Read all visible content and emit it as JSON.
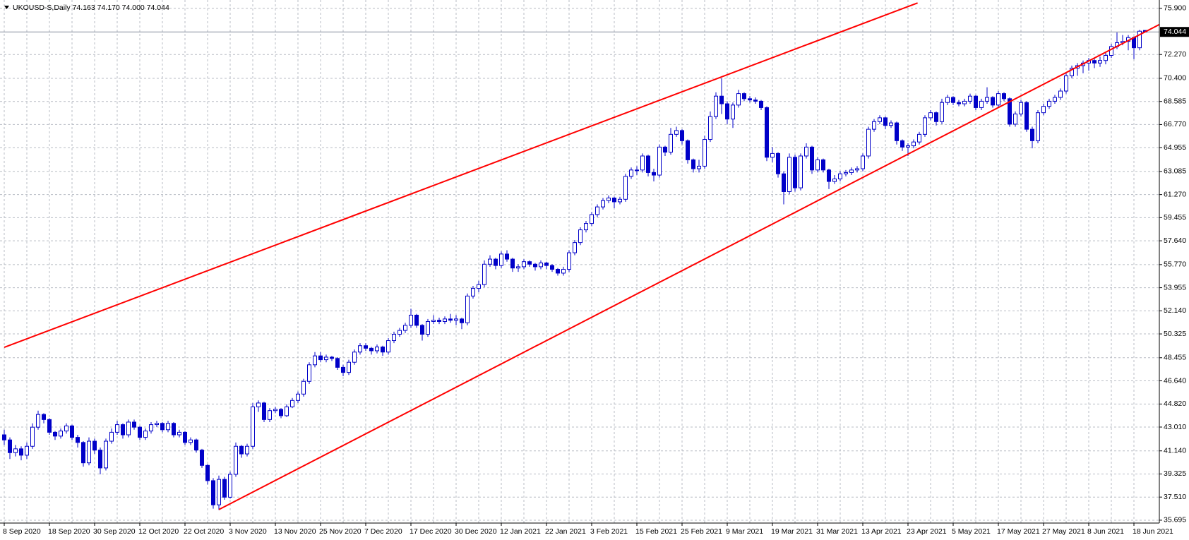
{
  "chart_data": {
    "type": "candlestick",
    "title": "UKOUSD-S,Daily  74.163 74.170 74.000 74.044",
    "color": "#0000c8",
    "grid": true,
    "ylim": [
      35.47,
      76.33
    ],
    "yticks": [
      {
        "value": 75.9,
        "label": "75.900"
      },
      {
        "value": 72.27,
        "label": "72.270"
      },
      {
        "value": 70.4,
        "label": "70.400"
      },
      {
        "value": 68.585,
        "label": "68.585"
      },
      {
        "value": 66.77,
        "label": "66.770"
      },
      {
        "value": 64.955,
        "label": "64.955"
      },
      {
        "value": 63.085,
        "label": "63.085"
      },
      {
        "value": 61.27,
        "label": "61.270"
      },
      {
        "value": 59.455,
        "label": "59.455"
      },
      {
        "value": 57.64,
        "label": "57.640"
      },
      {
        "value": 55.77,
        "label": "55.770"
      },
      {
        "value": 53.955,
        "label": "53.955"
      },
      {
        "value": 52.14,
        "label": "52.140"
      },
      {
        "value": 50.325,
        "label": "50.325"
      },
      {
        "value": 48.455,
        "label": "48.455"
      },
      {
        "value": 46.64,
        "label": "46.640"
      },
      {
        "value": 44.82,
        "label": "44.820"
      },
      {
        "value": 43.01,
        "label": "43.010"
      },
      {
        "value": 41.14,
        "label": "41.140"
      },
      {
        "value": 39.325,
        "label": "39.325"
      },
      {
        "value": 37.51,
        "label": "37.510"
      },
      {
        "value": 35.695,
        "label": "35.695"
      }
    ],
    "current_price": {
      "value": 74.044,
      "label": "74.044"
    },
    "trendlines": [
      {
        "color": "#ff0000",
        "x": [
          0,
          161.7
        ],
        "y": [
          49.27,
          76.32
        ]
      },
      {
        "color": "#ff0000",
        "x": [
          38,
          204.6
        ],
        "y": [
          36.53,
          74.65
        ]
      }
    ],
    "categories": [
      "8 Sep 2020",
      null,
      null,
      null,
      null,
      null,
      null,
      null,
      "18 Sep 2020",
      null,
      null,
      null,
      null,
      null,
      null,
      null,
      "30 Sep 2020",
      null,
      null,
      null,
      null,
      null,
      null,
      null,
      "12 Oct 2020",
      null,
      null,
      null,
      null,
      null,
      null,
      null,
      "22 Oct 2020",
      null,
      null,
      null,
      null,
      null,
      null,
      null,
      "3 Nov 2020",
      null,
      null,
      null,
      null,
      null,
      null,
      null,
      "13 Nov 2020",
      null,
      null,
      null,
      null,
      null,
      null,
      null,
      "25 Nov 2020",
      null,
      null,
      null,
      null,
      null,
      null,
      null,
      "7 Dec 2020",
      null,
      null,
      null,
      null,
      null,
      null,
      null,
      "17 Dec 2020",
      null,
      null,
      null,
      null,
      null,
      null,
      null,
      "30 Dec 2020",
      null,
      null,
      null,
      null,
      null,
      null,
      null,
      "12 Jan 2021",
      null,
      null,
      null,
      null,
      null,
      null,
      null,
      "22 Jan 2021",
      null,
      null,
      null,
      null,
      null,
      null,
      null,
      "3 Feb 2021",
      null,
      null,
      null,
      null,
      null,
      null,
      null,
      "15 Feb 2021",
      null,
      null,
      null,
      null,
      null,
      null,
      null,
      "25 Feb 2021",
      null,
      null,
      null,
      null,
      null,
      null,
      null,
      "9 Mar 2021",
      null,
      null,
      null,
      null,
      null,
      null,
      null,
      "19 Mar 2021",
      null,
      null,
      null,
      null,
      null,
      null,
      null,
      "31 Mar 2021",
      null,
      null,
      null,
      null,
      null,
      null,
      null,
      "13 Apr 2021",
      null,
      null,
      null,
      null,
      null,
      null,
      null,
      "23 Apr 2021",
      null,
      null,
      null,
      null,
      null,
      null,
      null,
      "5 May 2021",
      null,
      null,
      null,
      null,
      null,
      null,
      null,
      "17 May 2021",
      null,
      null,
      null,
      null,
      null,
      null,
      null,
      "27 May 2021",
      null,
      null,
      null,
      null,
      null,
      null,
      null,
      "8 Jun 2021",
      null,
      null,
      null,
      null,
      null,
      null,
      null,
      "18 Jun 2021",
      null,
      null
    ],
    "ohlc": [
      [
        42.4,
        42.8,
        41.6,
        42.0
      ],
      [
        42.0,
        42.2,
        40.5,
        41.0
      ],
      [
        41.0,
        41.6,
        40.7,
        41.3
      ],
      [
        41.3,
        41.5,
        40.4,
        40.8
      ],
      [
        40.8,
        41.8,
        40.5,
        41.5
      ],
      [
        41.5,
        43.3,
        41.3,
        43.0
      ],
      [
        43.0,
        44.3,
        42.8,
        44.0
      ],
      [
        44.0,
        44.1,
        43.3,
        43.6
      ],
      [
        43.6,
        43.7,
        42.4,
        42.6
      ],
      [
        42.6,
        42.7,
        42.0,
        42.3
      ],
      [
        42.3,
        42.9,
        42.1,
        42.7
      ],
      [
        42.7,
        43.3,
        42.5,
        43.1
      ],
      [
        43.1,
        43.2,
        42.0,
        42.2
      ],
      [
        42.2,
        42.4,
        41.4,
        41.8
      ],
      [
        41.8,
        41.9,
        39.9,
        40.2
      ],
      [
        40.2,
        42.2,
        40.0,
        41.9
      ],
      [
        41.9,
        42.1,
        40.9,
        41.2
      ],
      [
        41.2,
        41.4,
        39.3,
        39.8
      ],
      [
        39.8,
        42.1,
        39.6,
        41.9
      ],
      [
        41.9,
        42.9,
        41.7,
        42.6
      ],
      [
        42.6,
        43.5,
        42.4,
        43.2
      ],
      [
        43.2,
        43.3,
        42.1,
        42.4
      ],
      [
        42.4,
        43.6,
        42.2,
        43.4
      ],
      [
        43.4,
        43.6,
        42.8,
        43.0
      ],
      [
        43.0,
        43.1,
        42.0,
        42.2
      ],
      [
        42.2,
        42.9,
        42.0,
        42.7
      ],
      [
        42.7,
        43.4,
        42.5,
        43.2
      ],
      [
        43.2,
        43.5,
        43.0,
        43.3
      ],
      [
        43.3,
        43.4,
        42.6,
        42.8
      ],
      [
        42.8,
        43.5,
        42.6,
        43.3
      ],
      [
        43.3,
        43.4,
        42.2,
        42.4
      ],
      [
        42.4,
        42.8,
        42.2,
        42.6
      ],
      [
        42.6,
        42.7,
        41.6,
        41.8
      ],
      [
        41.8,
        42.2,
        41.6,
        42.0
      ],
      [
        42.0,
        42.1,
        41.0,
        41.2
      ],
      [
        41.2,
        41.3,
        39.8,
        40.0
      ],
      [
        40.0,
        40.1,
        38.5,
        38.8
      ],
      [
        38.8,
        39.0,
        36.6,
        36.9
      ],
      [
        36.9,
        39.2,
        36.5,
        38.9
      ],
      [
        38.9,
        39.1,
        37.3,
        37.5
      ],
      [
        37.5,
        39.5,
        37.4,
        39.3
      ],
      [
        39.3,
        41.8,
        39.1,
        41.5
      ],
      [
        41.5,
        41.6,
        40.6,
        40.9
      ],
      [
        40.9,
        41.7,
        40.7,
        41.5
      ],
      [
        41.5,
        44.9,
        41.3,
        44.6
      ],
      [
        44.6,
        45.1,
        44.2,
        44.9
      ],
      [
        44.9,
        45.0,
        43.4,
        43.6
      ],
      [
        43.6,
        44.5,
        43.4,
        44.3
      ],
      [
        44.3,
        44.6,
        44.1,
        44.4
      ],
      [
        44.4,
        44.5,
        43.7,
        43.9
      ],
      [
        43.9,
        44.8,
        43.8,
        44.6
      ],
      [
        44.6,
        45.3,
        44.5,
        45.1
      ],
      [
        45.1,
        45.8,
        44.9,
        45.6
      ],
      [
        45.6,
        46.8,
        45.4,
        46.6
      ],
      [
        46.6,
        48.1,
        46.4,
        47.9
      ],
      [
        47.9,
        48.9,
        47.7,
        48.6
      ],
      [
        48.6,
        48.9,
        48.1,
        48.3
      ],
      [
        48.3,
        48.7,
        48.1,
        48.5
      ],
      [
        48.5,
        48.6,
        48.2,
        48.4
      ],
      [
        48.4,
        48.5,
        47.5,
        47.7
      ],
      [
        47.7,
        47.9,
        47.0,
        47.3
      ],
      [
        47.3,
        48.3,
        47.1,
        48.1
      ],
      [
        48.1,
        49.1,
        47.9,
        48.9
      ],
      [
        48.9,
        49.6,
        48.7,
        49.4
      ],
      [
        49.4,
        49.6,
        49.0,
        49.2
      ],
      [
        49.2,
        49.3,
        48.7,
        49.0
      ],
      [
        49.0,
        49.5,
        48.8,
        49.3
      ],
      [
        49.3,
        49.4,
        48.6,
        48.9
      ],
      [
        48.9,
        50.0,
        48.7,
        49.8
      ],
      [
        49.8,
        50.5,
        49.6,
        50.3
      ],
      [
        50.3,
        50.8,
        50.1,
        50.6
      ],
      [
        50.6,
        51.2,
        50.4,
        51.0
      ],
      [
        51.0,
        52.3,
        50.8,
        51.8
      ],
      [
        51.8,
        51.9,
        50.8,
        51.0
      ],
      [
        51.0,
        51.1,
        49.8,
        50.3
      ],
      [
        50.3,
        51.5,
        50.1,
        51.3
      ],
      [
        51.3,
        51.8,
        51.1,
        51.4
      ],
      [
        51.4,
        51.6,
        51.1,
        51.3
      ],
      [
        51.3,
        51.7,
        51.1,
        51.5
      ],
      [
        51.5,
        51.9,
        51.2,
        51.4
      ],
      [
        51.4,
        51.8,
        51.0,
        51.5
      ],
      [
        51.5,
        51.6,
        50.7,
        51.2
      ],
      [
        51.2,
        53.5,
        51.0,
        53.3
      ],
      [
        53.3,
        54.1,
        53.1,
        53.9
      ],
      [
        53.9,
        54.5,
        53.6,
        54.2
      ],
      [
        54.2,
        56.1,
        54.0,
        55.8
      ],
      [
        55.8,
        56.5,
        55.6,
        56.2
      ],
      [
        56.2,
        56.3,
        55.4,
        55.7
      ],
      [
        55.7,
        56.8,
        55.5,
        56.6
      ],
      [
        56.6,
        56.9,
        56.0,
        56.2
      ],
      [
        56.2,
        56.3,
        55.2,
        55.5
      ],
      [
        55.5,
        55.8,
        55.2,
        55.6
      ],
      [
        55.6,
        56.2,
        55.4,
        56.0
      ],
      [
        56.0,
        56.1,
        55.6,
        55.8
      ],
      [
        55.8,
        55.9,
        55.3,
        55.6
      ],
      [
        55.6,
        56.1,
        55.4,
        55.9
      ],
      [
        55.9,
        56.0,
        55.4,
        55.7
      ],
      [
        55.7,
        55.8,
        55.2,
        55.4
      ],
      [
        55.4,
        55.5,
        54.9,
        55.1
      ],
      [
        55.1,
        55.6,
        54.9,
        55.4
      ],
      [
        55.4,
        56.9,
        55.2,
        56.7
      ],
      [
        56.7,
        57.7,
        56.5,
        57.5
      ],
      [
        57.5,
        58.7,
        57.3,
        58.5
      ],
      [
        58.5,
        59.2,
        58.3,
        59.0
      ],
      [
        59.0,
        59.9,
        58.8,
        59.7
      ],
      [
        59.7,
        60.5,
        59.5,
        60.3
      ],
      [
        60.3,
        61.0,
        60.1,
        60.8
      ],
      [
        60.8,
        61.2,
        60.6,
        61.0
      ],
      [
        61.0,
        61.1,
        60.2,
        60.7
      ],
      [
        60.7,
        61.1,
        60.5,
        60.9
      ],
      [
        60.9,
        62.9,
        60.7,
        62.7
      ],
      [
        62.7,
        63.4,
        62.5,
        63.2
      ],
      [
        63.2,
        63.5,
        62.8,
        63.2
      ],
      [
        63.2,
        64.5,
        63.0,
        64.3
      ],
      [
        64.3,
        64.4,
        62.7,
        63.0
      ],
      [
        63.0,
        63.3,
        62.3,
        62.8
      ],
      [
        62.8,
        65.2,
        62.6,
        65.0
      ],
      [
        65.0,
        65.1,
        64.3,
        64.6
      ],
      [
        64.6,
        66.5,
        64.4,
        66.0
      ],
      [
        66.0,
        66.6,
        65.8,
        66.3
      ],
      [
        66.3,
        66.4,
        65.2,
        65.5
      ],
      [
        65.5,
        65.6,
        63.7,
        64.0
      ],
      [
        64.0,
        64.1,
        63.0,
        63.3
      ],
      [
        63.3,
        64.0,
        63.0,
        63.5
      ],
      [
        63.5,
        65.9,
        63.3,
        65.6
      ],
      [
        65.6,
        67.8,
        65.4,
        67.4
      ],
      [
        67.4,
        69.3,
        67.2,
        69.0
      ],
      [
        69.0,
        70.4,
        67.6,
        68.4
      ],
      [
        68.4,
        68.6,
        66.8,
        67.2
      ],
      [
        67.2,
        68.5,
        66.5,
        68.3
      ],
      [
        68.3,
        69.5,
        68.1,
        69.2
      ],
      [
        69.2,
        69.3,
        68.6,
        68.8
      ],
      [
        68.8,
        69.0,
        68.5,
        68.7
      ],
      [
        68.7,
        68.9,
        68.4,
        68.6
      ],
      [
        68.6,
        68.7,
        67.9,
        68.1
      ],
      [
        68.1,
        68.2,
        63.9,
        64.2
      ],
      [
        64.2,
        65.0,
        63.8,
        64.5
      ],
      [
        64.5,
        64.6,
        62.6,
        62.9
      ],
      [
        62.9,
        63.1,
        60.5,
        61.5
      ],
      [
        61.5,
        64.5,
        61.3,
        64.2
      ],
      [
        64.2,
        64.4,
        61.5,
        61.8
      ],
      [
        61.8,
        64.5,
        61.6,
        64.3
      ],
      [
        64.3,
        65.3,
        64.1,
        65.0
      ],
      [
        65.0,
        65.1,
        62.9,
        63.2
      ],
      [
        63.2,
        64.2,
        63.0,
        64.0
      ],
      [
        64.0,
        64.1,
        63.0,
        63.2
      ],
      [
        63.2,
        63.3,
        61.7,
        62.3
      ],
      [
        62.3,
        62.8,
        62.1,
        62.5
      ],
      [
        62.5,
        63.1,
        62.3,
        62.9
      ],
      [
        62.9,
        63.2,
        62.7,
        63.0
      ],
      [
        63.0,
        63.4,
        62.8,
        63.2
      ],
      [
        63.2,
        63.5,
        63.0,
        63.3
      ],
      [
        63.3,
        64.5,
        63.1,
        64.3
      ],
      [
        64.3,
        66.6,
        64.1,
        66.4
      ],
      [
        66.4,
        67.2,
        66.2,
        67.0
      ],
      [
        67.0,
        67.5,
        66.8,
        67.3
      ],
      [
        67.3,
        67.4,
        66.4,
        66.7
      ],
      [
        66.7,
        67.1,
        66.5,
        66.9
      ],
      [
        66.9,
        67.0,
        65.2,
        65.5
      ],
      [
        65.5,
        65.6,
        64.7,
        65.0
      ],
      [
        65.0,
        65.3,
        64.3,
        65.1
      ],
      [
        65.1,
        65.6,
        64.9,
        65.4
      ],
      [
        65.4,
        66.2,
        65.2,
        66.0
      ],
      [
        66.0,
        67.5,
        65.8,
        67.3
      ],
      [
        67.3,
        67.9,
        67.1,
        67.7
      ],
      [
        67.7,
        67.8,
        66.7,
        67.0
      ],
      [
        67.0,
        68.8,
        66.8,
        68.5
      ],
      [
        68.5,
        69.1,
        68.3,
        68.9
      ],
      [
        68.9,
        69.0,
        68.3,
        68.5
      ],
      [
        68.5,
        68.7,
        68.2,
        68.4
      ],
      [
        68.4,
        68.8,
        68.2,
        68.6
      ],
      [
        68.6,
        69.2,
        68.4,
        69.0
      ],
      [
        69.0,
        69.1,
        67.9,
        68.1
      ],
      [
        68.1,
        68.8,
        67.9,
        68.6
      ],
      [
        68.6,
        69.7,
        68.4,
        68.9
      ],
      [
        68.9,
        69.0,
        68.1,
        68.3
      ],
      [
        68.3,
        69.4,
        68.1,
        69.2
      ],
      [
        69.2,
        69.3,
        68.6,
        68.8
      ],
      [
        68.8,
        68.9,
        66.6,
        66.8
      ],
      [
        66.8,
        67.8,
        66.6,
        67.6
      ],
      [
        67.6,
        68.7,
        67.4,
        68.5
      ],
      [
        68.5,
        68.6,
        66.2,
        66.4
      ],
      [
        66.4,
        66.6,
        64.9,
        65.5
      ],
      [
        65.5,
        67.9,
        65.3,
        67.7
      ],
      [
        67.7,
        68.4,
        67.5,
        68.2
      ],
      [
        68.2,
        68.8,
        68.0,
        68.6
      ],
      [
        68.6,
        69.1,
        68.4,
        68.9
      ],
      [
        68.9,
        69.6,
        68.7,
        69.4
      ],
      [
        69.4,
        70.8,
        69.2,
        70.6
      ],
      [
        70.6,
        71.4,
        70.4,
        71.2
      ],
      [
        71.2,
        71.6,
        70.6,
        71.4
      ],
      [
        71.4,
        71.8,
        70.8,
        71.6
      ],
      [
        71.6,
        72.0,
        71.0,
        71.8
      ],
      [
        71.8,
        72.0,
        71.2,
        71.6
      ],
      [
        71.6,
        72.1,
        71.3,
        71.8
      ],
      [
        71.8,
        72.4,
        71.5,
        72.2
      ],
      [
        72.2,
        73.1,
        72.0,
        72.9
      ],
      [
        72.9,
        74.0,
        72.7,
        73.2
      ],
      [
        73.2,
        73.8,
        73.0,
        73.3
      ],
      [
        73.3,
        73.8,
        72.6,
        73.6
      ],
      [
        73.6,
        73.7,
        71.9,
        72.8
      ],
      [
        72.8,
        74.2,
        72.6,
        74.1
      ],
      [
        74.163,
        74.17,
        74.0,
        74.044
      ]
    ]
  }
}
